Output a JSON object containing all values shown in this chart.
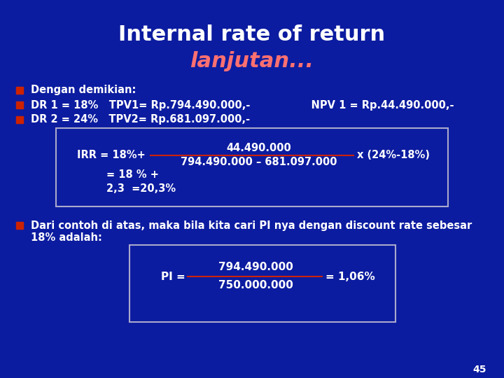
{
  "title_line1": "Internal rate of return",
  "title_line2": "lanjutan...",
  "bg_color": "#0c1ca0",
  "title1_color": "#ffffff",
  "title2_color": "#ff7070",
  "text_color": "#ffffff",
  "box_bg": "#0c1ca0",
  "box_border": "#aaaacc",
  "bullet_color": "#cc2200",
  "bullet_lines": [
    "Dengan demikian:",
    "DR 1 = 18%   TPV1= Rp.794.490.000,-                 NPV 1 = Rp.44.490.000,-",
    "DR 2 = 24%   TPV2= Rp.681.097.000,-"
  ],
  "irr_box": {
    "irr_label": "IRR = 18%+",
    "numerator": "44.490.000",
    "denominator": "794.490.000 – 681.097.000",
    "multiplier": "x (24%-18%)",
    "line2": "= 18 % +",
    "line3": "2,3  =20,3%"
  },
  "pi_box": {
    "label": "PI =",
    "numerator": "794.490.000",
    "denominator": "750.000.000",
    "result": "= 1,06%"
  },
  "bottom_line1": "Dari contoh di atas, maka bila kita cari PI nya dengan discount rate sebesar",
  "bottom_line2": "18% adalah:",
  "page_number": "45"
}
